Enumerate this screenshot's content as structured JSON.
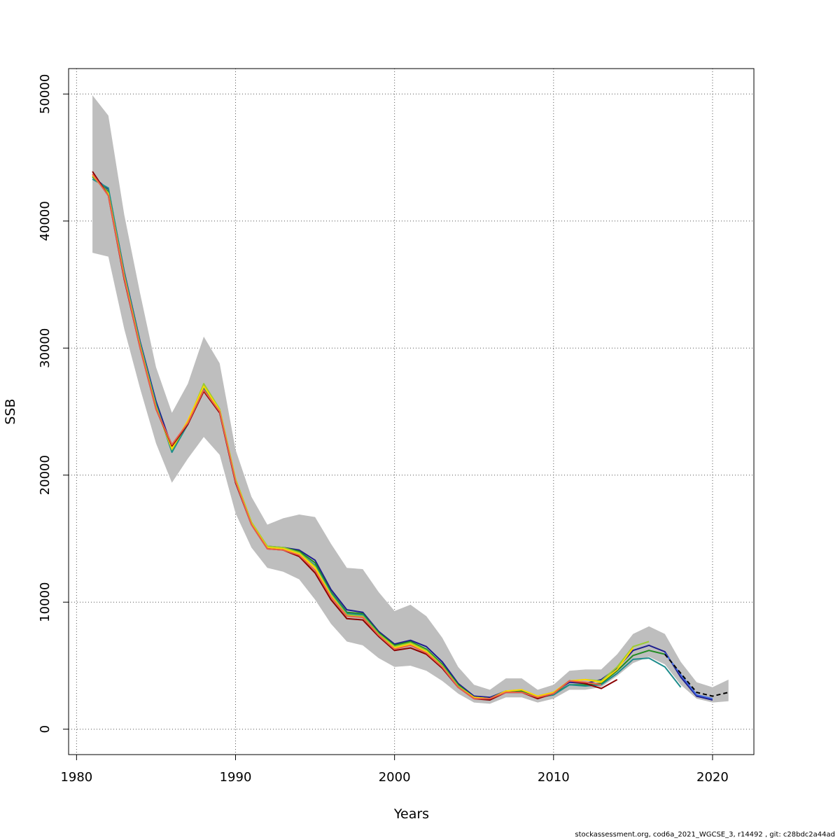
{
  "chart_data": {
    "type": "line",
    "xlabel": "Years",
    "ylabel": "SSB",
    "xlim": [
      1979.5,
      2022.6
    ],
    "ylim": [
      -2000,
      52000
    ],
    "x_ticks": [
      1980,
      1990,
      2000,
      2010,
      2020
    ],
    "x_tick_labels": [
      "1980",
      "1990",
      "2000",
      "2010",
      "2020"
    ],
    "y_ticks": [
      0,
      10000,
      20000,
      30000,
      40000,
      50000
    ],
    "y_tick_labels": [
      "0",
      "10000",
      "20000",
      "30000",
      "40000",
      "50000"
    ],
    "grid": true,
    "confidence_band": {
      "color": "#bebebe",
      "x": [
        1981,
        1982,
        1983,
        1984,
        1985,
        1986,
        1987,
        1988,
        1989,
        1990,
        1991,
        1992,
        1993,
        1994,
        1995,
        1996,
        1997,
        1998,
        1999,
        2000,
        2001,
        2002,
        2003,
        2004,
        2005,
        2006,
        2007,
        2008,
        2009,
        2010,
        2011,
        2012,
        2013,
        2014,
        2015,
        2016,
        2017,
        2018,
        2019,
        2020,
        2021
      ],
      "lower": [
        37500,
        37200,
        31500,
        26800,
        22500,
        19400,
        21300,
        23000,
        21600,
        17000,
        14300,
        12700,
        12400,
        11800,
        10200,
        8300,
        6900,
        6600,
        5600,
        4900,
        5000,
        4600,
        3800,
        2800,
        2100,
        2000,
        2500,
        2500,
        2100,
        2400,
        3100,
        3100,
        3300,
        4200,
        5200,
        5700,
        5100,
        3500,
        2400,
        2100,
        2200
      ],
      "upper": [
        49900,
        48300,
        40500,
        34300,
        28500,
        24900,
        27200,
        30900,
        28800,
        22000,
        18300,
        16100,
        16600,
        16900,
        16700,
        14600,
        12700,
        12600,
        10800,
        9300,
        9800,
        8900,
        7200,
        4900,
        3500,
        3100,
        4000,
        4000,
        3100,
        3500,
        4600,
        4700,
        4700,
        5900,
        7500,
        8100,
        7500,
        5300,
        3700,
        3300,
        3900
      ]
    },
    "series": [
      {
        "color": "#1d1d8f",
        "x": [
          1981,
          1982,
          1983,
          1984,
          1985,
          1986,
          1987,
          1988,
          1989,
          1990,
          1991,
          1992,
          1993,
          1994,
          1995,
          1996,
          1997,
          1998,
          1999,
          2000,
          2001,
          2002,
          2003,
          2004,
          2005,
          2006,
          2007,
          2008,
          2009,
          2010,
          2011,
          2012,
          2013,
          2014,
          2015,
          2016,
          2017,
          2018,
          2019,
          2020
        ],
        "y": [
          43500,
          42500,
          36000,
          30500,
          25800,
          22200,
          24200,
          26800,
          25000,
          19600,
          16200,
          14400,
          14300,
          14100,
          13300,
          11000,
          9400,
          9200,
          7700,
          6700,
          7000,
          6500,
          5300,
          3600,
          2600,
          2500,
          3000,
          3000,
          2600,
          2900,
          3700,
          3600,
          3900,
          4800,
          6200,
          6600,
          6100,
          4100,
          2600,
          2300
        ]
      },
      {
        "color": "#228b22",
        "x": [
          1981,
          1982,
          1983,
          1984,
          1985,
          1986,
          1987,
          1988,
          1989,
          1990,
          1991,
          1992,
          1993,
          1994,
          1995,
          1996,
          1997,
          1998,
          1999,
          2000,
          2001,
          2002,
          2003,
          2004,
          2005,
          2006,
          2007,
          2008,
          2009,
          2010,
          2011,
          2012,
          2013,
          2014,
          2015,
          2016,
          2017
        ],
        "y": [
          43500,
          42300,
          35800,
          30300,
          25500,
          21900,
          24100,
          27100,
          25100,
          19600,
          16200,
          14300,
          14300,
          14000,
          13100,
          10800,
          9200,
          9100,
          7600,
          6600,
          6900,
          6300,
          5100,
          3500,
          2500,
          2400,
          3000,
          3000,
          2500,
          2800,
          3500,
          3500,
          3600,
          4600,
          5800,
          6200,
          5900
        ]
      },
      {
        "color": "#1e8c8c",
        "x": [
          1981,
          1982,
          1983,
          1984,
          1985,
          1986,
          1987,
          1988,
          1989,
          1990,
          1991,
          1992,
          1993,
          1994,
          1995,
          1996,
          1997,
          1998,
          1999,
          2000,
          2001,
          2002,
          2003,
          2004,
          2005,
          2006,
          2007,
          2008,
          2009,
          2010,
          2011,
          2012,
          2013,
          2014,
          2015,
          2016,
          2017,
          2018
        ],
        "y": [
          43300,
          42600,
          35900,
          30400,
          25600,
          21800,
          24000,
          26900,
          25000,
          19500,
          16200,
          14300,
          14200,
          13900,
          12900,
          10700,
          9100,
          9000,
          7500,
          6500,
          6800,
          6200,
          5000,
          3400,
          2500,
          2400,
          2900,
          2900,
          2500,
          2700,
          3500,
          3400,
          3500,
          4400,
          5500,
          5600,
          4900,
          3300
        ]
      },
      {
        "color": "#9acd32",
        "x": [
          1981,
          1982,
          1983,
          1984,
          1985,
          1986,
          1987,
          1988,
          1989,
          1990,
          1991,
          1992,
          1993,
          1994,
          1995,
          1996,
          1997,
          1998,
          1999,
          2000,
          2001,
          2002,
          2003,
          2004,
          2005,
          2006,
          2007,
          2008,
          2009,
          2010,
          2011,
          2012,
          2013,
          2014,
          2015,
          2016
        ],
        "y": [
          43600,
          42200,
          35700,
          30200,
          25400,
          22000,
          24200,
          27200,
          25200,
          19700,
          16300,
          14400,
          14300,
          13900,
          12800,
          10600,
          9000,
          8900,
          7500,
          6500,
          6800,
          6200,
          5000,
          3400,
          2500,
          2400,
          3000,
          3100,
          2600,
          2900,
          3800,
          3900,
          3800,
          4900,
          6500,
          6900
        ]
      },
      {
        "color": "#ffd700",
        "x": [
          1981,
          1982,
          1983,
          1984,
          1985,
          1986,
          1987,
          1988,
          1989,
          1990,
          1991,
          1992,
          1993,
          1994,
          1995,
          1996,
          1997,
          1998,
          1999,
          2000,
          2001,
          2002,
          2003,
          2004,
          2005,
          2006,
          2007,
          2008,
          2009,
          2010,
          2011,
          2012,
          2013,
          2014,
          2015
        ],
        "y": [
          43600,
          42100,
          35600,
          30100,
          25300,
          22100,
          24300,
          27000,
          25100,
          19600,
          16200,
          14300,
          14200,
          13800,
          12700,
          10500,
          8900,
          8800,
          7400,
          6400,
          6700,
          6100,
          4900,
          3300,
          2500,
          2400,
          3000,
          3100,
          2600,
          2900,
          3800,
          3900,
          3700,
          4700,
          6400
        ]
      },
      {
        "color": "#8b0000",
        "x": [
          1981,
          1982,
          1983,
          1984,
          1985,
          1986,
          1987,
          1988,
          1989,
          1990,
          1991,
          1992,
          1993,
          1994,
          1995,
          1996,
          1997,
          1998,
          1999,
          2000,
          2001,
          2002,
          2003,
          2004,
          2005,
          2006,
          2007,
          2008,
          2009,
          2010,
          2011,
          2012,
          2013,
          2014
        ],
        "y": [
          43900,
          42000,
          35400,
          30000,
          25200,
          22300,
          24000,
          26600,
          24900,
          19400,
          16100,
          14200,
          14100,
          13600,
          12300,
          10200,
          8700,
          8600,
          7300,
          6200,
          6400,
          5900,
          4800,
          3300,
          2400,
          2300,
          2900,
          2900,
          2400,
          2800,
          3800,
          3600,
          3200,
          3900
        ]
      },
      {
        "color": "#e8604c",
        "x": [
          1981,
          1982,
          1983,
          1984,
          1985,
          1986,
          1987,
          1988,
          1989,
          1990,
          1991,
          1992,
          1993,
          1994,
          1995,
          1996,
          1997,
          1998,
          1999,
          2000,
          2001,
          2002,
          2003,
          2004,
          2005,
          2006,
          2007,
          2008,
          2009,
          2010,
          2011,
          2012,
          2013
        ],
        "y": [
          43700,
          42000,
          35500,
          30000,
          25200,
          22400,
          24100,
          26700,
          25000,
          19500,
          16100,
          14200,
          14100,
          13700,
          12500,
          10400,
          8900,
          8800,
          7400,
          6300,
          6600,
          6000,
          4900,
          3300,
          2400,
          2400,
          2900,
          2900,
          2500,
          2800,
          3800,
          3700,
          3500
        ]
      },
      {
        "color": "#4169e1",
        "x": [
          2017,
          2018,
          2019,
          2020
        ],
        "y": [
          6000,
          4300,
          2700,
          2400
        ]
      },
      {
        "color": "#000000",
        "dashed": true,
        "x": [
          2017,
          2018,
          2019,
          2020,
          2021
        ],
        "y": [
          5900,
          4400,
          2900,
          2600,
          2900
        ]
      }
    ]
  },
  "footer": "stockassessment.org, cod6a_2021_WGCSE_3, r14492 , git: c28bdc2a44ad"
}
